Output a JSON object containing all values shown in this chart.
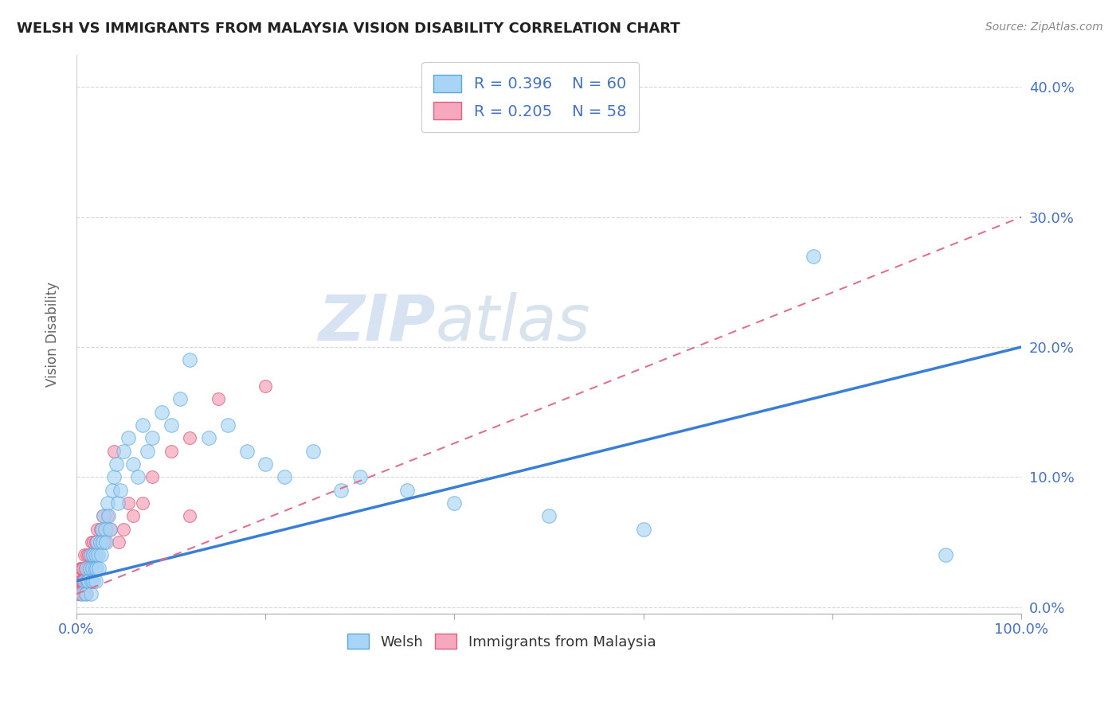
{
  "title": "WELSH VS IMMIGRANTS FROM MALAYSIA VISION DISABILITY CORRELATION CHART",
  "source": "Source: ZipAtlas.com",
  "ylabel": "Vision Disability",
  "yticks": [
    "0.0%",
    "10.0%",
    "20.0%",
    "30.0%",
    "40.0%"
  ],
  "ytick_vals": [
    0.0,
    0.1,
    0.2,
    0.3,
    0.4
  ],
  "xlim": [
    0.0,
    1.0
  ],
  "ylim": [
    -0.005,
    0.425
  ],
  "legend_r1": "R = 0.396",
  "legend_n1": "N = 60",
  "legend_r2": "R = 0.205",
  "legend_n2": "N = 58",
  "color_welsh": "#a8d4f5",
  "color_malaysia": "#f5a8be",
  "color_welsh_edge": "#5ba8e0",
  "color_malaysia_edge": "#e06080",
  "color_welsh_line": "#3a7fd4",
  "color_malaysia_line": "#e07090",
  "watermark_zip": "ZIP",
  "watermark_atlas": "atlas",
  "welsh_x": [
    0.005,
    0.008,
    0.01,
    0.01,
    0.012,
    0.013,
    0.014,
    0.015,
    0.015,
    0.016,
    0.017,
    0.018,
    0.018,
    0.019,
    0.02,
    0.02,
    0.021,
    0.022,
    0.023,
    0.024,
    0.025,
    0.026,
    0.027,
    0.028,
    0.029,
    0.03,
    0.031,
    0.033,
    0.034,
    0.035,
    0.038,
    0.04,
    0.042,
    0.044,
    0.046,
    0.05,
    0.055,
    0.06,
    0.065,
    0.07,
    0.075,
    0.08,
    0.09,
    0.1,
    0.11,
    0.12,
    0.14,
    0.16,
    0.18,
    0.2,
    0.22,
    0.25,
    0.28,
    0.3,
    0.35,
    0.4,
    0.5,
    0.6,
    0.78,
    0.92
  ],
  "welsh_y": [
    0.01,
    0.02,
    0.01,
    0.03,
    0.02,
    0.02,
    0.03,
    0.01,
    0.04,
    0.02,
    0.03,
    0.02,
    0.04,
    0.03,
    0.02,
    0.04,
    0.03,
    0.05,
    0.04,
    0.03,
    0.05,
    0.04,
    0.06,
    0.05,
    0.07,
    0.06,
    0.05,
    0.08,
    0.07,
    0.06,
    0.09,
    0.1,
    0.11,
    0.08,
    0.09,
    0.12,
    0.13,
    0.11,
    0.1,
    0.14,
    0.12,
    0.13,
    0.15,
    0.14,
    0.16,
    0.19,
    0.13,
    0.14,
    0.12,
    0.11,
    0.1,
    0.12,
    0.09,
    0.1,
    0.09,
    0.08,
    0.07,
    0.06,
    0.27,
    0.04
  ],
  "malaysia_x": [
    0.002,
    0.003,
    0.003,
    0.004,
    0.004,
    0.004,
    0.005,
    0.005,
    0.005,
    0.006,
    0.006,
    0.006,
    0.007,
    0.007,
    0.007,
    0.008,
    0.008,
    0.008,
    0.009,
    0.009,
    0.009,
    0.01,
    0.01,
    0.01,
    0.011,
    0.011,
    0.012,
    0.012,
    0.013,
    0.013,
    0.014,
    0.015,
    0.015,
    0.016,
    0.016,
    0.017,
    0.018,
    0.019,
    0.02,
    0.021,
    0.022,
    0.025,
    0.028,
    0.03,
    0.033,
    0.036,
    0.04,
    0.045,
    0.05,
    0.055,
    0.06,
    0.07,
    0.08,
    0.1,
    0.12,
    0.15,
    0.2,
    0.12
  ],
  "malaysia_y": [
    0.01,
    0.01,
    0.02,
    0.01,
    0.02,
    0.03,
    0.01,
    0.02,
    0.03,
    0.01,
    0.02,
    0.03,
    0.01,
    0.02,
    0.03,
    0.01,
    0.02,
    0.04,
    0.01,
    0.02,
    0.03,
    0.01,
    0.02,
    0.03,
    0.02,
    0.04,
    0.02,
    0.03,
    0.02,
    0.04,
    0.03,
    0.02,
    0.04,
    0.03,
    0.05,
    0.04,
    0.05,
    0.04,
    0.05,
    0.04,
    0.06,
    0.06,
    0.07,
    0.05,
    0.07,
    0.06,
    0.12,
    0.05,
    0.06,
    0.08,
    0.07,
    0.08,
    0.1,
    0.12,
    0.13,
    0.16,
    0.17,
    0.07
  ],
  "bg_color": "#ffffff",
  "grid_color": "#d8d8d8",
  "welsh_line_x0": 0.0,
  "welsh_line_y0": 0.02,
  "welsh_line_x1": 1.0,
  "welsh_line_y1": 0.2,
  "malaysia_line_x0": 0.0,
  "malaysia_line_y0": 0.01,
  "malaysia_line_x1": 1.0,
  "malaysia_line_y1": 0.3
}
